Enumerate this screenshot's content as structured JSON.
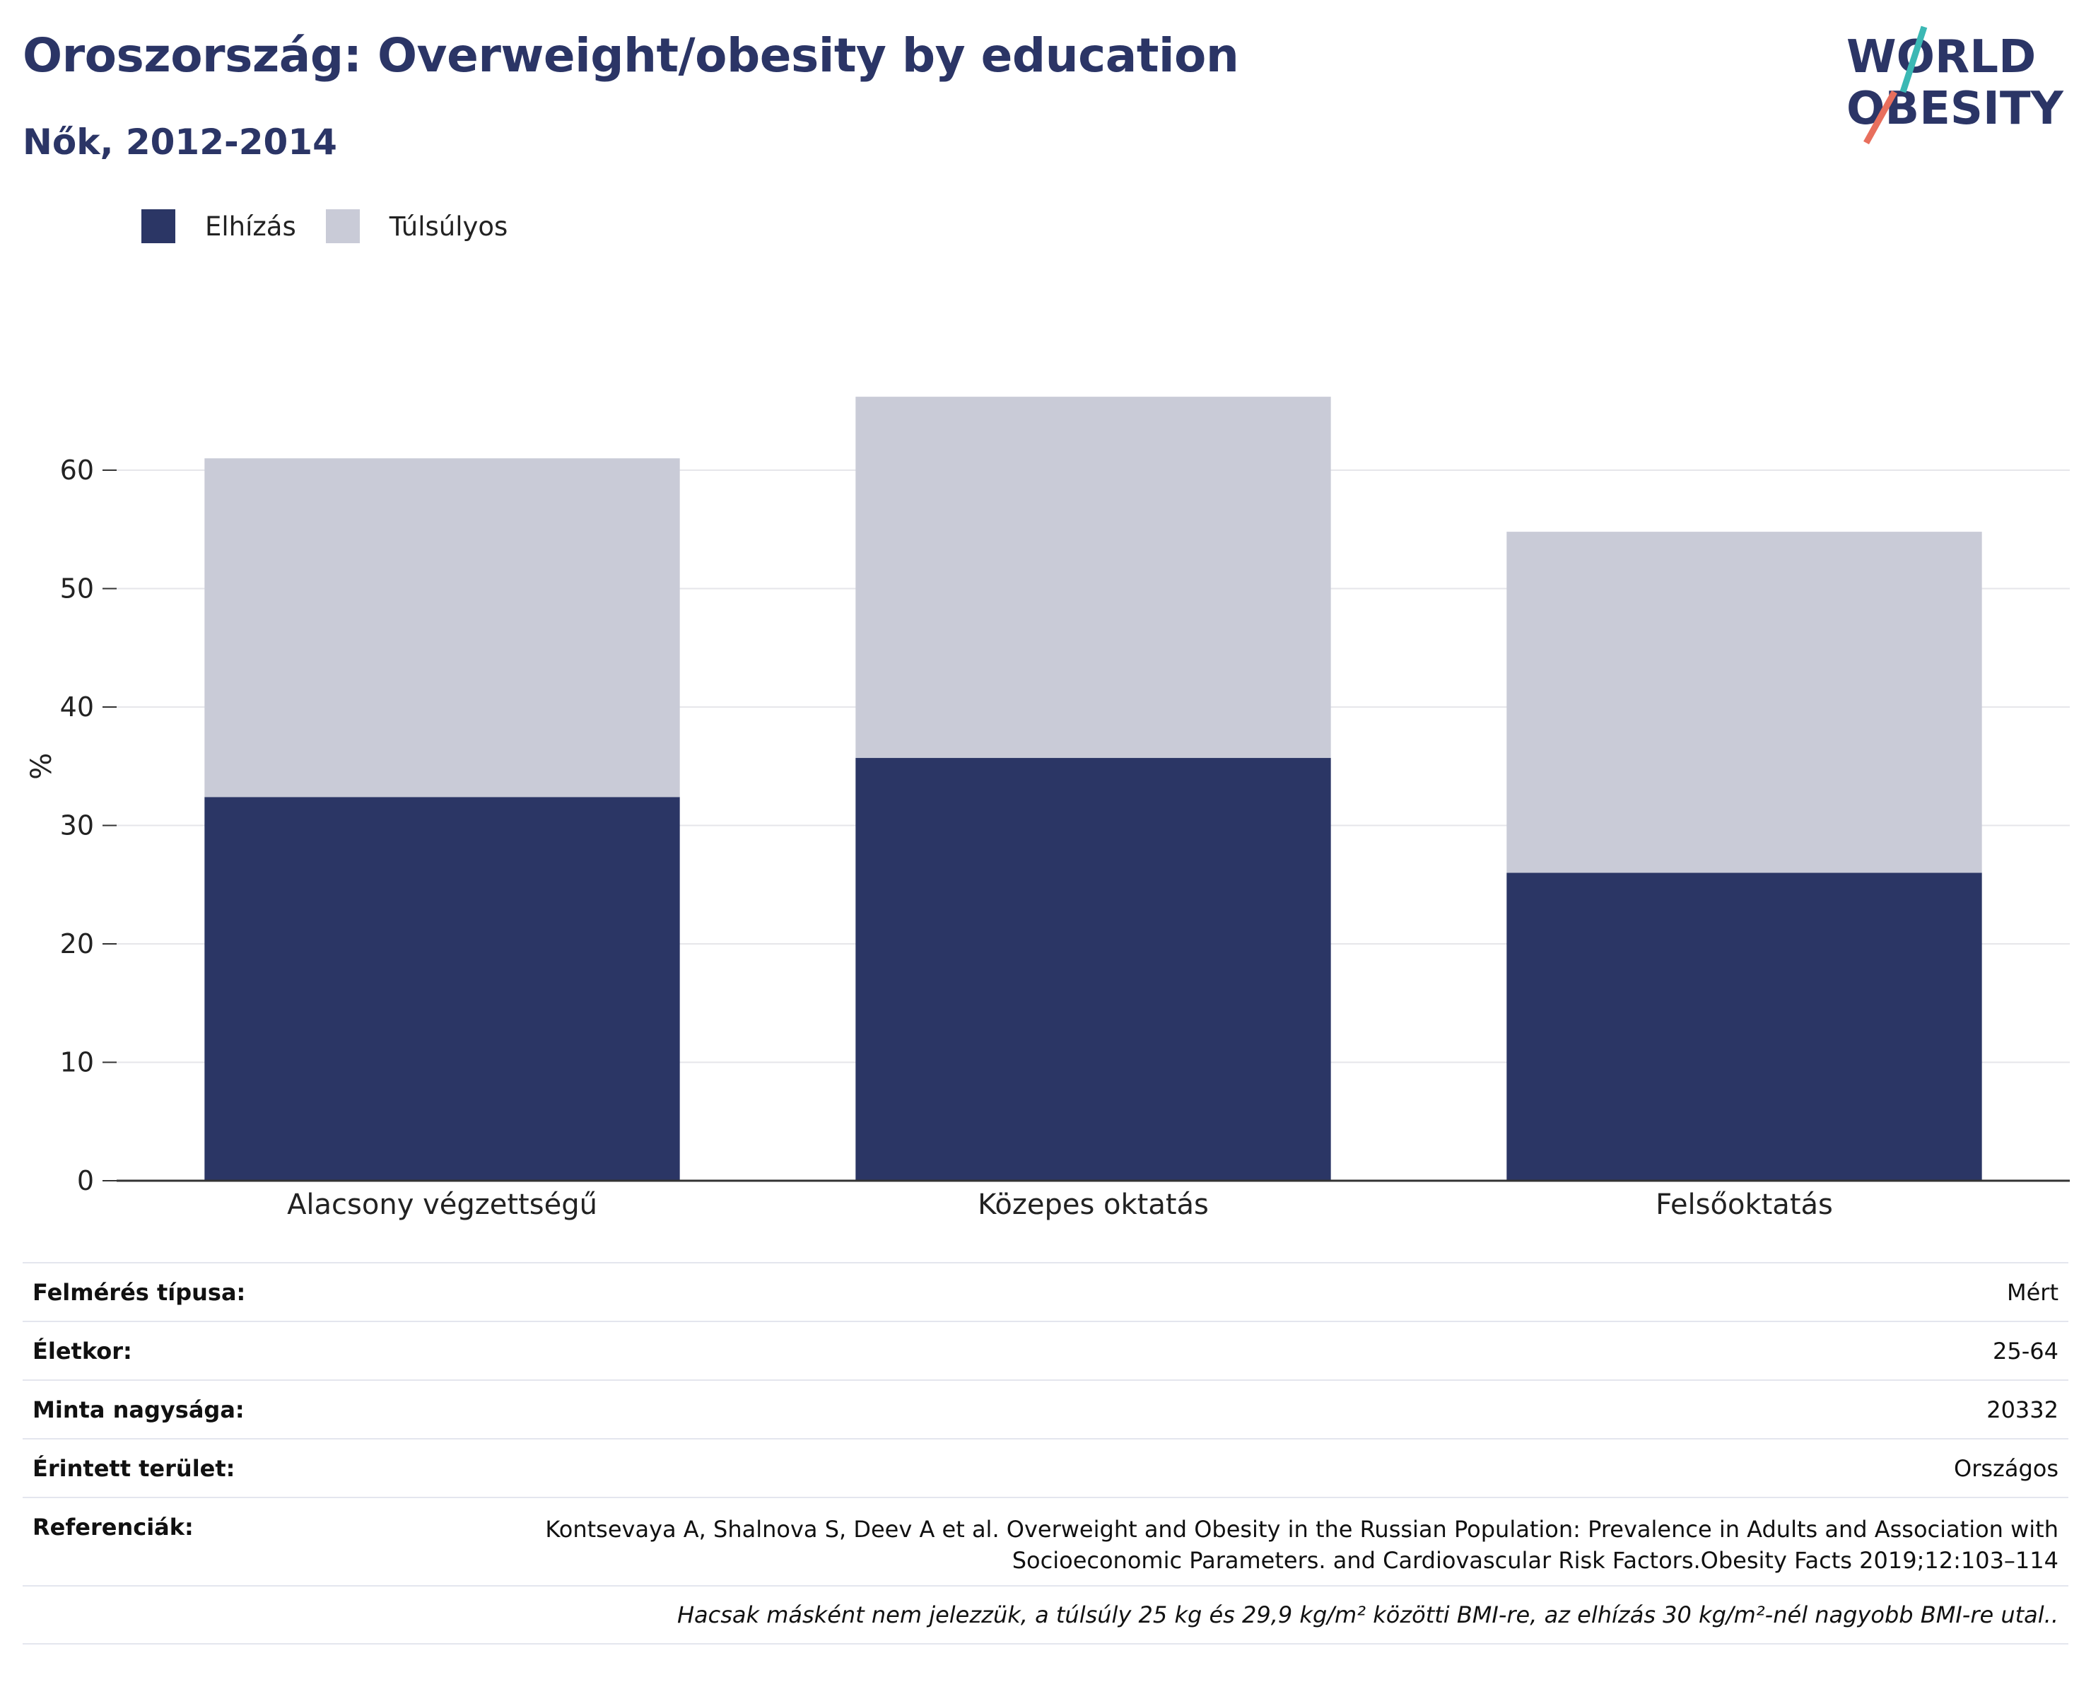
{
  "header": {
    "title": "Oroszország: Overweight/obesity by education",
    "subtitle": "Nők, 2012-2014"
  },
  "logo": {
    "line1": "WORLD",
    "line2": "OBESITY"
  },
  "colors": {
    "obesity": "#2b3665",
    "overweight": "#c9cbd7",
    "title": "#2b3566",
    "logo_teal": "#3bb8b4",
    "logo_coral": "#e86f5d"
  },
  "legend": [
    {
      "label": "Elhízás",
      "color": "#2b3665"
    },
    {
      "label": "Túlsúlyos",
      "color": "#c9cbd7"
    }
  ],
  "chart_data": {
    "type": "bar",
    "stacked": true,
    "categories": [
      "Alacsony végzettségű",
      "Közepes oktatás",
      "Felsőoktatás"
    ],
    "series": [
      {
        "name": "Elhízás",
        "values": [
          32.4,
          35.7,
          26.0
        ]
      },
      {
        "name": "Túlsúlyos",
        "values": [
          28.6,
          30.5,
          28.8
        ]
      }
    ],
    "ylabel": "%",
    "ylim": [
      0,
      70
    ],
    "yticks": [
      0,
      10,
      20,
      30,
      40,
      50,
      60
    ],
    "grid": true,
    "legend_position": "top-left"
  },
  "info": {
    "rows": [
      {
        "key": "Felmérés típusa:",
        "value": "Mért"
      },
      {
        "key": "Életkor:",
        "value": "25-64"
      },
      {
        "key": "Minta nagysága:",
        "value": "20332"
      },
      {
        "key": "Érintett terület:",
        "value": "Országos"
      }
    ],
    "references_key": "Referenciák:",
    "references_line1": "Kontsevaya A, Shalnova S, Deev A et al. Overweight and Obesity in the Russian Population: Prevalence in Adults and Association with",
    "references_line2": "Socioeconomic Parameters. and Cardiovascular Risk Factors.Obesity Facts 2019;12:103–114",
    "note": "Hacsak másként nem jelezzük, a túlsúly 25 kg és 29,9 kg/m² közötti BMI-re, az elhízás 30 kg/m²-nél nagyobb BMI-re utal.."
  }
}
